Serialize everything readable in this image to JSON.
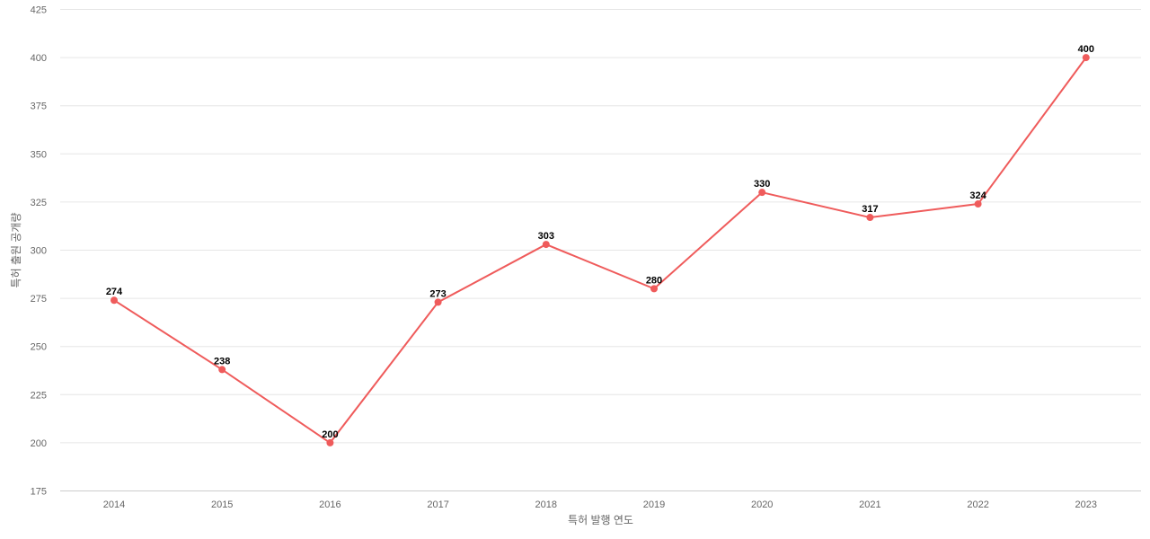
{
  "chart_data": {
    "type": "line",
    "title": "",
    "xlabel": "특허 발행 연도",
    "ylabel": "특허 출원 공개량",
    "categories": [
      "2014",
      "2015",
      "2016",
      "2017",
      "2018",
      "2019",
      "2020",
      "2021",
      "2022",
      "2023"
    ],
    "series": [
      {
        "values": [
          274,
          238,
          200,
          273,
          303,
          280,
          330,
          317,
          324,
          400
        ]
      }
    ],
    "ylim": [
      175,
      425
    ],
    "yticks": [
      175,
      200,
      225,
      250,
      275,
      300,
      325,
      350,
      375,
      400,
      425
    ],
    "grid": true,
    "data_labels": true,
    "line_color": "#ef5b5b",
    "legend": "none"
  }
}
